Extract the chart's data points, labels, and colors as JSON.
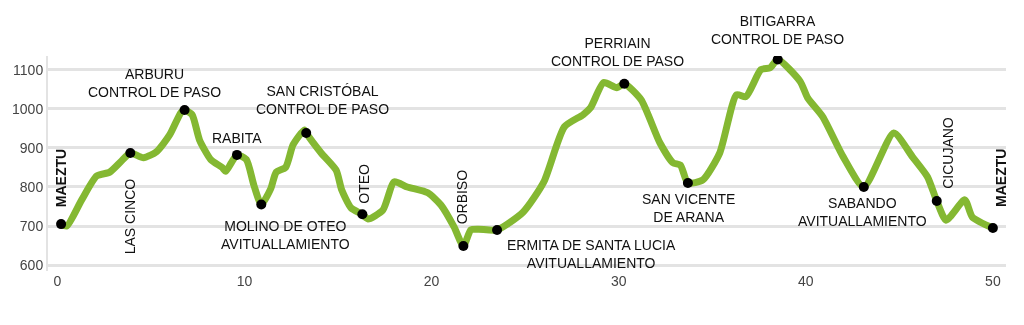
{
  "chart_data": {
    "type": "line",
    "xlim": [
      -0.5,
      50.7
    ],
    "ylim": [
      585,
      1135
    ],
    "xticks": [
      0,
      10,
      20,
      30,
      40,
      50
    ],
    "yticks": [
      600,
      700,
      800,
      900,
      1000,
      1100
    ],
    "grid": "y",
    "series": [
      {
        "type": "line",
        "color": "#84b832",
        "x": [
          0.2,
          0.5,
          1.3,
          2.1,
          2.8,
          3.4,
          3.9,
          4.6,
          5.3,
          6.0,
          6.6,
          6.8,
          7.2,
          7.6,
          8.2,
          8.8,
          9.0,
          9.3,
          9.6,
          10.1,
          10.5,
          10.9,
          11.4,
          11.7,
          12.2,
          12.6,
          13.2,
          13.3,
          14.1,
          14.9,
          15.2,
          15.7,
          16.3,
          16.6,
          17.4,
          18.0,
          18.7,
          19.8,
          20.5,
          21.2,
          21.7,
          22.1,
          22.5,
          23.5,
          24.9,
          26.0,
          27.1,
          28.1,
          28.5,
          29.2,
          29.9,
          30.3,
          31.2,
          32.2,
          32.9,
          33.3,
          33.7,
          34.5,
          35.4,
          36.3,
          36.8,
          37.6,
          38.1,
          38.5,
          39.7,
          40.1,
          40.9,
          42.0,
          43.1,
          44.7,
          45.7,
          46.5,
          47.0,
          47.5,
          48.5,
          48.9,
          50.0
        ],
        "values": [
          705,
          700,
          767,
          828,
          838,
          865,
          887,
          875,
          890,
          933,
          990,
          997,
          985,
          920,
          870,
          850,
          840,
          862,
          882,
          870,
          805,
          755,
          795,
          838,
          850,
          908,
          946,
          938,
          887,
          843,
          792,
          746,
          730,
          718,
          741,
          813,
          800,
          785,
          754,
          698,
          649,
          690,
          692,
          690,
          736,
          813,
          954,
          985,
          1003,
          1067,
          1054,
          1064,
          1023,
          913,
          862,
          856,
          810,
          818,
          887,
          1036,
          1031,
          1100,
          1105,
          1126,
          1070,
          1028,
          980,
          877,
          800,
          938,
          877,
          826,
          764,
          715,
          767,
          723,
          695
        ]
      },
      {
        "type": "scatter",
        "marker": "circle",
        "color": "#000000",
        "x": [
          0.2,
          3.9,
          6.8,
          9.6,
          10.9,
          13.3,
          16.3,
          21.7,
          23.5,
          30.3,
          33.7,
          38.5,
          43.1,
          47.0,
          50.0
        ],
        "values": [
          705,
          887,
          997,
          882,
          755,
          938,
          730,
          649,
          690,
          1064,
          810,
          1126,
          800,
          764,
          695
        ]
      }
    ],
    "annotations": [
      {
        "text": "MAEZTU",
        "x": 0.2,
        "y": 705
      },
      {
        "text": "LAS CINCO",
        "x": 3.9,
        "y": 887
      },
      {
        "text": "ARBURU\nCONTROL DE PASO",
        "x": 6.8,
        "y": 997
      },
      {
        "text": "RABITA",
        "x": 9.6,
        "y": 882
      },
      {
        "text": "MOLINO DE OTEO\nAVITUALLAMIENTO",
        "x": 10.9,
        "y": 755
      },
      {
        "text": "SAN CRISTÓBAL\nCONTROL DE PASO",
        "x": 13.3,
        "y": 938
      },
      {
        "text": "OTEO",
        "x": 16.3,
        "y": 730
      },
      {
        "text": "ORBISO",
        "x": 21.7,
        "y": 649
      },
      {
        "text": "ERMITA DE SANTA LUCIA\nAVITUALLAMIENTO",
        "x": 23.5,
        "y": 690
      },
      {
        "text": "PERRIAIN\nCONTROL DE PASO",
        "x": 30.3,
        "y": 1064
      },
      {
        "text": "SAN VICENTE\nDE ARANA",
        "x": 33.7,
        "y": 810
      },
      {
        "text": "BITIGARRA\nCONTROL DE PASO",
        "x": 38.5,
        "y": 1126
      },
      {
        "text": "SABANDO\nAVITUALLAMIENTO",
        "x": 43.1,
        "y": 800
      },
      {
        "text": "CICUJANO",
        "x": 47.0,
        "y": 764
      },
      {
        "text": "MAEZTU",
        "x": 50.0,
        "y": 695
      }
    ]
  }
}
